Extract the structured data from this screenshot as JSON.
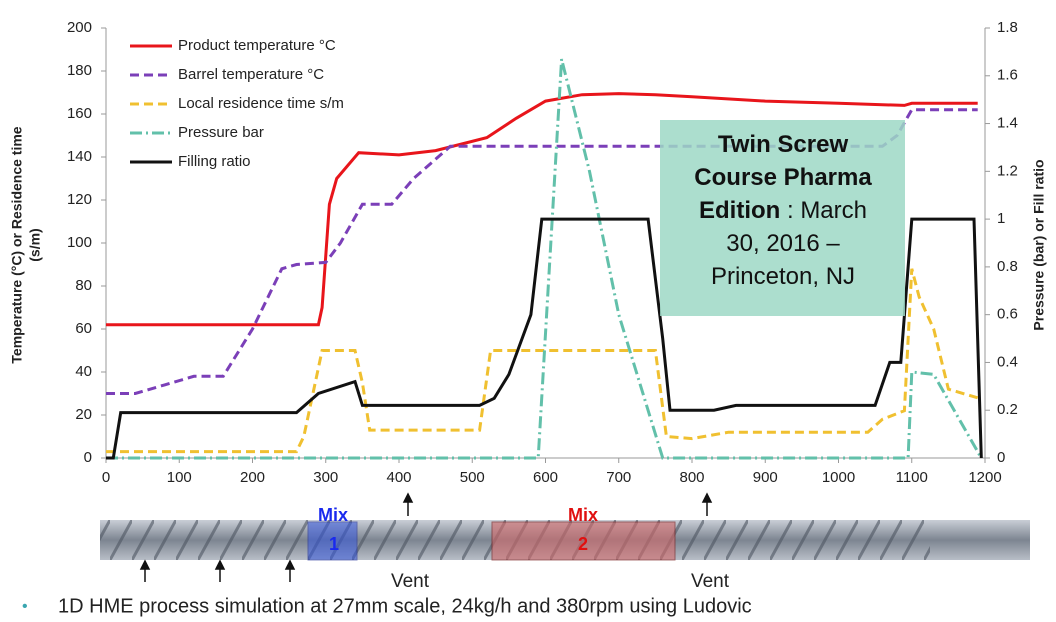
{
  "chart_data": {
    "type": "line",
    "ylabel": [
      "Temperature (°C) or Residence time",
      "(s/m)"
    ],
    "y2label": "Pressure (bar) or Fill ratio",
    "xlim": [
      0,
      1200
    ],
    "xticks": [
      0,
      100,
      200,
      300,
      400,
      500,
      600,
      700,
      800,
      900,
      1000,
      1100,
      1200
    ],
    "ylim": [
      0,
      200
    ],
    "yticks": [
      0,
      20,
      40,
      60,
      80,
      100,
      120,
      140,
      160,
      180,
      200
    ],
    "y2lim": [
      0,
      1.8
    ],
    "y2ticks": [
      0,
      0.2,
      0.4,
      0.6,
      0.8,
      1,
      1.2,
      1.4,
      1.6,
      1.8
    ],
    "legend": "upper left",
    "series": [
      {
        "name": "Product temperature °C",
        "color": "#e8151b",
        "dash": "solid",
        "x": [
          0,
          290,
          295,
          305,
          315,
          345,
          400,
          450,
          520,
          560,
          600,
          650,
          700,
          750,
          800,
          900,
          1000,
          1090,
          1100,
          1190
        ],
        "values": [
          62,
          62,
          70,
          118,
          130,
          142,
          141,
          143,
          149,
          158,
          166,
          169,
          169.5,
          169,
          168,
          166,
          165,
          164,
          165,
          165
        ]
      },
      {
        "name": "Barrel temperature °C",
        "color": "#7b3fb8",
        "dash": "dashed",
        "x": [
          0,
          40,
          80,
          120,
          160,
          200,
          240,
          260,
          300,
          320,
          350,
          390,
          420,
          470,
          600,
          1060,
          1080,
          1100,
          1190
        ],
        "values": [
          30,
          30,
          34,
          38,
          38,
          60,
          88,
          90,
          91,
          100,
          118,
          118,
          130,
          145,
          145,
          145,
          150,
          162,
          162
        ]
      },
      {
        "name": "Local residence time s/m",
        "color": "#f0c030",
        "dash": "dashed",
        "x": [
          0,
          260,
          270,
          295,
          340,
          350,
          360,
          510,
          525,
          750,
          765,
          800,
          850,
          1040,
          1060,
          1090,
          1100,
          1110,
          1130,
          1150,
          1190
        ],
        "values": [
          3,
          3,
          10,
          50,
          50,
          35,
          13,
          13,
          50,
          50,
          10,
          9,
          12,
          12,
          18,
          22,
          88,
          75,
          60,
          32,
          28
        ]
      },
      {
        "name": "Pressure bar",
        "color": "#62c0aa",
        "dash": "dash-dot",
        "axis": "y2",
        "x": [
          0,
          590,
          622,
          660,
          700,
          760,
          1095,
          1100,
          1130,
          1195
        ],
        "values": [
          0,
          0,
          1.67,
          1.2,
          0.6,
          0,
          0,
          0.36,
          0.35,
          0
        ]
      },
      {
        "name": "Filling ratio",
        "color": "#111111",
        "dash": "solid",
        "axis": "y2",
        "x": [
          0,
          10,
          20,
          260,
          290,
          340,
          350,
          510,
          530,
          550,
          580,
          595,
          740,
          760,
          770,
          830,
          860,
          1050,
          1070,
          1085,
          1100,
          1185,
          1195
        ],
        "values": [
          0,
          0,
          0.19,
          0.19,
          0.27,
          0.32,
          0.22,
          0.22,
          0.25,
          0.35,
          0.6,
          1,
          1,
          0.5,
          0.2,
          0.2,
          0.22,
          0.22,
          0.4,
          0.4,
          1,
          1,
          0
        ]
      }
    ]
  },
  "annotation": {
    "bold": "Twin Screw Course Pharma Edition",
    "text": " : March 30, 2016 – Princeton, NJ"
  },
  "screw_diagram": {
    "mix1": [
      "Mix",
      "1"
    ],
    "mix2": [
      "Mix",
      "2"
    ],
    "vents": [
      "Vent",
      "Vent"
    ]
  },
  "caption": "1D HME process simulation at 27mm scale, 24kg/h and 380rpm using Ludovic"
}
